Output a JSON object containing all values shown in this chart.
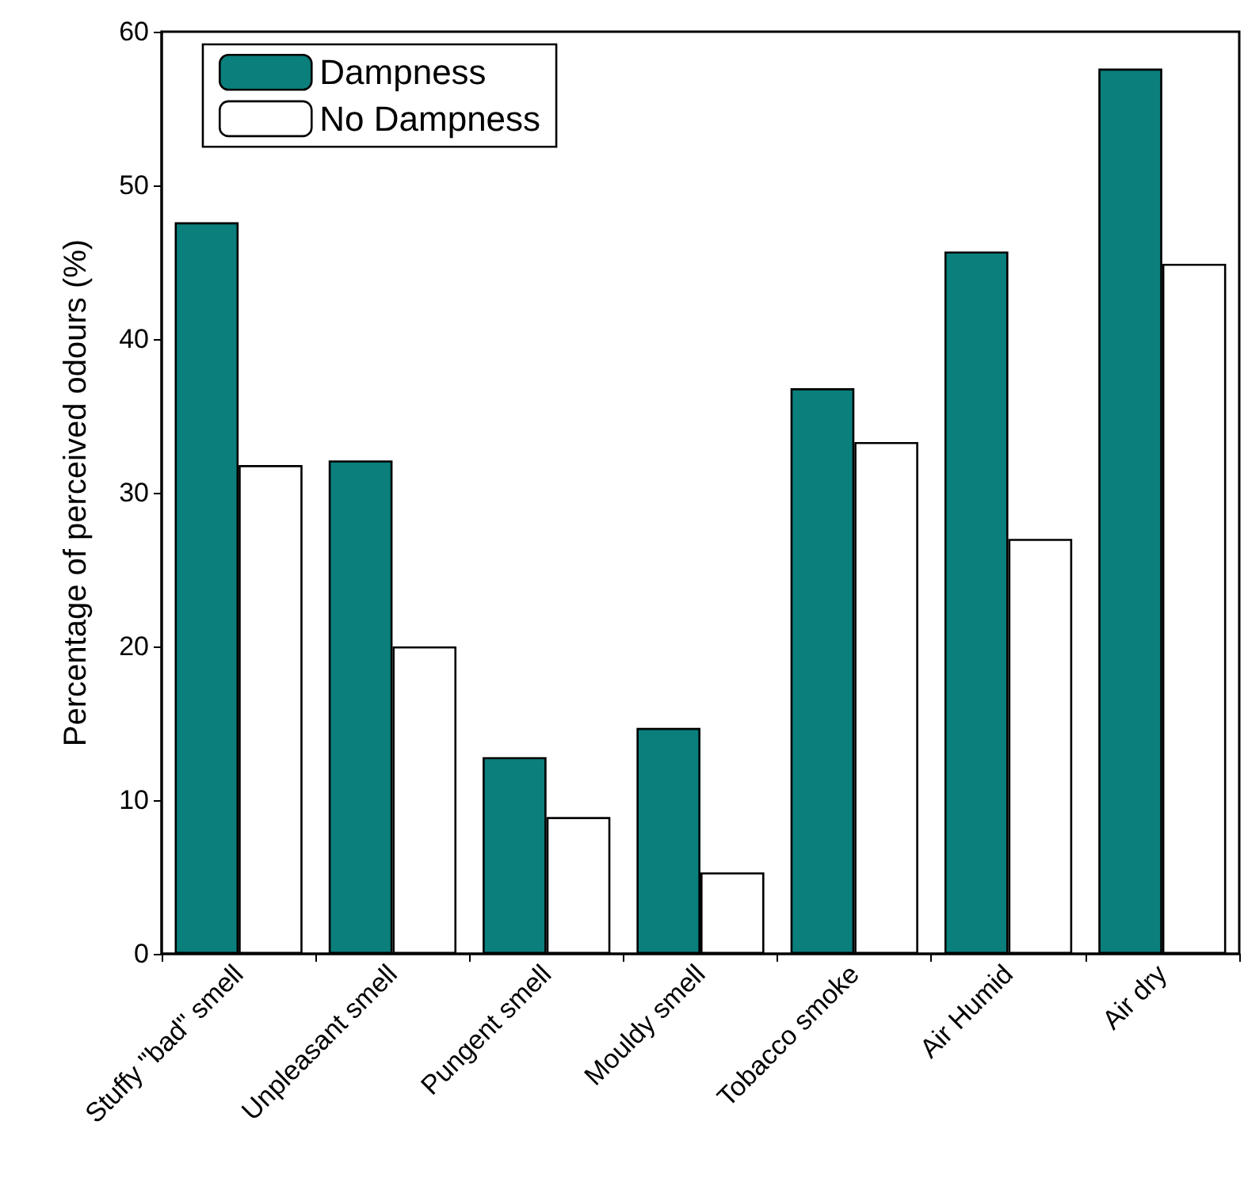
{
  "chart_data": {
    "type": "bar",
    "ylabel": "Percentage of perceived odours (%)",
    "categories": [
      "Stuffy \"bad\" smell",
      "Unpleasant smell",
      "Pungent smell",
      "Mouldy smell",
      "Tobacco smoke",
      "Air Humid",
      "Air dry"
    ],
    "series": [
      {
        "name": "Dampness",
        "color": "#0a7f7c",
        "values": [
          47.6,
          32.1,
          12.8,
          14.7,
          36.8,
          45.7,
          57.6
        ]
      },
      {
        "name": "No Dampness",
        "color": "#ffffff",
        "values": [
          31.8,
          20.0,
          8.9,
          5.3,
          33.3,
          27.0,
          44.9
        ]
      }
    ],
    "ylim": [
      0,
      60
    ],
    "yticks": [
      0,
      10,
      20,
      30,
      40,
      50,
      60
    ],
    "grid": false,
    "legend": "top left"
  }
}
